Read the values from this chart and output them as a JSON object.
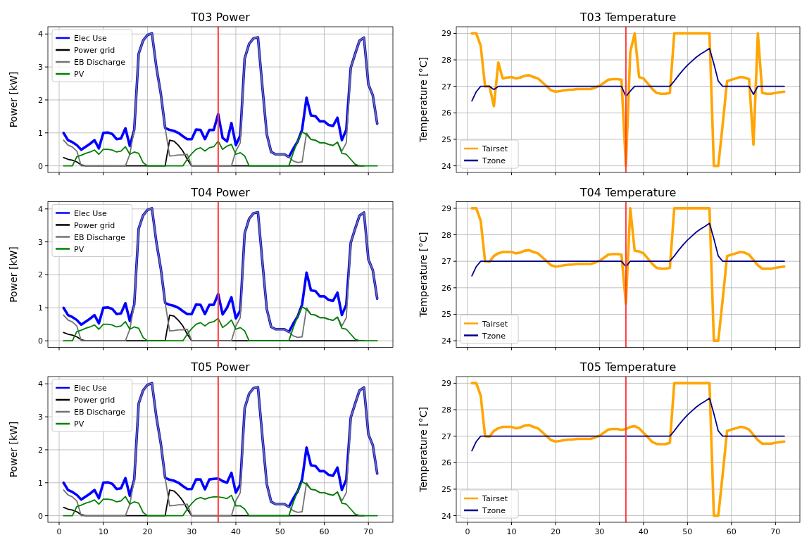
{
  "chart_data": [
    {
      "type": "line",
      "title": "T03 Power",
      "ylabel": "Power [kW]",
      "xlim": [
        -2.55,
        75.55
      ],
      "ylim": [
        -0.2,
        4.22
      ],
      "xticks": [
        0,
        10,
        20,
        30,
        40,
        50,
        60,
        70
      ],
      "yticks": [
        0,
        1,
        2,
        3,
        4
      ],
      "grid": true,
      "legend": "top left",
      "tick_labels": "y",
      "ref_lines": [
        {
          "axis": "x",
          "value": 36,
          "color": "#ff3b3b"
        }
      ],
      "x": [
        1,
        2,
        3,
        4,
        5,
        6,
        7,
        8,
        9,
        10,
        11,
        12,
        13,
        14,
        15,
        16,
        17,
        18,
        19,
        20,
        21,
        22,
        23,
        24,
        25,
        26,
        27,
        28,
        29,
        30,
        31,
        32,
        33,
        34,
        35,
        36,
        37,
        38,
        39,
        40,
        41,
        42,
        43,
        44,
        45,
        46,
        47,
        48,
        49,
        50,
        51,
        52,
        53,
        54,
        55,
        56,
        57,
        58,
        59,
        60,
        61,
        62,
        63,
        64,
        65,
        66,
        67,
        68,
        69,
        70,
        71,
        72
      ],
      "series": [
        {
          "name": "Elec Use",
          "color": "#0000ff",
          "values": [
            1.0,
            0.78,
            0.72,
            0.63,
            0.49,
            0.58,
            0.67,
            0.78,
            0.53,
            1.0,
            1.01,
            0.97,
            0.81,
            0.83,
            1.14,
            0.6,
            1.1,
            3.4,
            3.8,
            3.97,
            4.02,
            3.0,
            2.2,
            1.15,
            1.09,
            1.06,
            1.0,
            0.9,
            0.81,
            0.81,
            1.1,
            1.09,
            0.81,
            1.09,
            1.09,
            1.57,
            0.85,
            0.74,
            1.3,
            0.63,
            0.92,
            3.26,
            3.7,
            3.87,
            3.9,
            2.4,
            0.96,
            0.42,
            0.35,
            0.35,
            0.35,
            0.27,
            0.52,
            0.74,
            1.1,
            2.07,
            1.53,
            1.51,
            1.35,
            1.35,
            1.24,
            1.21,
            1.46,
            0.78,
            1.1,
            2.97,
            3.4,
            3.8,
            3.89,
            2.47,
            2.14,
            1.28
          ]
        },
        {
          "name": "Power grid",
          "color": "#000000",
          "values": [
            0.25,
            0.2,
            0.17,
            0.12,
            0.03,
            0,
            0,
            0,
            0,
            0,
            0,
            0,
            0,
            0,
            0,
            0,
            0,
            0,
            0,
            0,
            0,
            0,
            0,
            0,
            0.78,
            0.75,
            0.62,
            0.45,
            0.2,
            0,
            0,
            0,
            0,
            0,
            0,
            0,
            0,
            0,
            0,
            0,
            0,
            0,
            0,
            0,
            0,
            0,
            0,
            0,
            0,
            0,
            0,
            0,
            0,
            0,
            0,
            0,
            0,
            0,
            0,
            0,
            0,
            0,
            0,
            0,
            0,
            0,
            0,
            0,
            0,
            null,
            null,
            null
          ]
        },
        {
          "name": "EB Discharge",
          "color": "#737373",
          "values": [
            0.78,
            0.63,
            0.57,
            0.45,
            0,
            0,
            0,
            0,
            0,
            0,
            0,
            0,
            0,
            0,
            0,
            0.35,
            1.1,
            3.4,
            3.8,
            3.97,
            4.02,
            3.0,
            2.2,
            1.15,
            0.3,
            0.31,
            0.33,
            0.33,
            0.35,
            0,
            0,
            0,
            0,
            0,
            0,
            0,
            0,
            0,
            0,
            0.45,
            0.7,
            3.26,
            3.7,
            3.87,
            3.9,
            2.4,
            0.96,
            0.42,
            0.35,
            0.35,
            0.35,
            0.27,
            0.15,
            0.1,
            0.12,
            1.0,
            0.8,
            0.78,
            0.7,
            0.7,
            0.65,
            0.62,
            0.72,
            0.45,
            0.7,
            2.97,
            3.4,
            3.8,
            3.89,
            2.47,
            2.14,
            1.28
          ]
        },
        {
          "name": "PV",
          "color": "#008000",
          "values": [
            0,
            0,
            0,
            0.28,
            0.32,
            0.38,
            0.42,
            0.48,
            0.35,
            0.5,
            0.5,
            0.48,
            0.42,
            0.45,
            0.58,
            0.35,
            0.42,
            0.38,
            0.1,
            0,
            0,
            0,
            0,
            0,
            0,
            0,
            0,
            0,
            0.2,
            0.37,
            0.5,
            0.55,
            0.45,
            0.55,
            0.58,
            0.75,
            0.5,
            0.6,
            0.65,
            0.35,
            0.4,
            0.3,
            0,
            0,
            0,
            0,
            0,
            0,
            0,
            0,
            0,
            0,
            0.4,
            0.75,
            1.03,
            0.95,
            0.8,
            0.78,
            0.7,
            0.7,
            0.65,
            0.62,
            0.72,
            0.38,
            0.35,
            0.2,
            0.05,
            0,
            0,
            0,
            0,
            0
          ]
        }
      ]
    },
    {
      "type": "line",
      "title": "T03 Temperature",
      "ylabel": "Temperature [°C]",
      "xlim": [
        -2.55,
        75.55
      ],
      "ylim": [
        23.75,
        29.25
      ],
      "xticks": [
        0,
        10,
        20,
        30,
        40,
        50,
        60,
        70
      ],
      "yticks": [
        24,
        25,
        26,
        27,
        28,
        29
      ],
      "grid": true,
      "legend": "bottom left",
      "tick_labels": "y",
      "ref_lines": [
        {
          "axis": "x",
          "value": 36,
          "color": "#ff3b3b"
        }
      ],
      "x": [
        1,
        2,
        3,
        4,
        5,
        6,
        7,
        8,
        9,
        10,
        11,
        12,
        13,
        14,
        15,
        16,
        17,
        18,
        19,
        20,
        21,
        22,
        23,
        24,
        25,
        26,
        27,
        28,
        29,
        30,
        31,
        32,
        33,
        34,
        35,
        36,
        37,
        38,
        39,
        40,
        41,
        42,
        43,
        44,
        45,
        46,
        47,
        48,
        49,
        50,
        51,
        52,
        53,
        54,
        55,
        56,
        57,
        58,
        59,
        60,
        61,
        62,
        63,
        64,
        65,
        66,
        67,
        68,
        69,
        70,
        71,
        72
      ],
      "series": [
        {
          "name": "Tairset",
          "color": "#ffa500",
          "values": [
            29,
            29,
            28.53,
            27.0,
            27.0,
            26.25,
            27.9,
            27.3,
            27.33,
            27.35,
            27.3,
            27.33,
            27.4,
            27.42,
            27.35,
            27.3,
            27.15,
            27.0,
            26.85,
            26.8,
            26.82,
            26.85,
            26.87,
            26.88,
            26.9,
            26.9,
            26.9,
            26.9,
            26.95,
            27.02,
            27.13,
            27.25,
            27.27,
            27.27,
            27.25,
            24.0,
            28.3,
            29.0,
            27.35,
            27.3,
            27.1,
            26.9,
            26.75,
            26.72,
            26.72,
            26.75,
            29.0,
            29.0,
            29.0,
            29.0,
            29.0,
            29.0,
            29.0,
            29.0,
            29.0,
            24.0,
            24.0,
            25.55,
            27.2,
            27.25,
            27.3,
            27.35,
            27.33,
            27.27,
            24.8,
            29.0,
            26.75,
            26.72,
            26.72,
            26.75,
            26.78,
            26.8
          ]
        },
        {
          "name": "Tzone",
          "color": "#00008b",
          "values": [
            26.45,
            26.8,
            27.0,
            27.0,
            27.0,
            26.88,
            27,
            27,
            27,
            27,
            27,
            27,
            27,
            27,
            27,
            27,
            27,
            27,
            27,
            27,
            27,
            27,
            27,
            27,
            27,
            27,
            27,
            27,
            27,
            27,
            27,
            27,
            27,
            27,
            27,
            26.62,
            26.82,
            27,
            27,
            27,
            27,
            27,
            27,
            27,
            27,
            27,
            27.2,
            27.42,
            27.62,
            27.8,
            27.95,
            28.1,
            28.22,
            28.32,
            28.43,
            27.85,
            27.2,
            27,
            27,
            27,
            27,
            27,
            27,
            27,
            26.7,
            27,
            27,
            27,
            27,
            27,
            27,
            27
          ]
        }
      ]
    },
    {
      "type": "line",
      "title": "T04 Power",
      "ylabel": "Power [kW]",
      "xlim": [
        -2.55,
        75.55
      ],
      "ylim": [
        -0.2,
        4.22
      ],
      "xticks": [
        0,
        10,
        20,
        30,
        40,
        50,
        60,
        70
      ],
      "yticks": [
        0,
        1,
        2,
        3,
        4
      ],
      "grid": true,
      "legend": "top left",
      "tick_labels": "y",
      "ref_lines": [
        {
          "axis": "x",
          "value": 36,
          "color": "#ff3b3b"
        }
      ],
      "x": [
        1,
        2,
        3,
        4,
        5,
        6,
        7,
        8,
        9,
        10,
        11,
        12,
        13,
        14,
        15,
        16,
        17,
        18,
        19,
        20,
        21,
        22,
        23,
        24,
        25,
        26,
        27,
        28,
        29,
        30,
        31,
        32,
        33,
        34,
        35,
        36,
        37,
        38,
        39,
        40,
        41,
        42,
        43,
        44,
        45,
        46,
        47,
        48,
        49,
        50,
        51,
        52,
        53,
        54,
        55,
        56,
        57,
        58,
        59,
        60,
        61,
        62,
        63,
        64,
        65,
        66,
        67,
        68,
        69,
        70,
        71,
        72
      ],
      "series": [
        {
          "name": "Elec Use",
          "color": "#0000ff",
          "values": [
            1.0,
            0.78,
            0.72,
            0.63,
            0.49,
            0.58,
            0.67,
            0.78,
            0.53,
            1.0,
            1.01,
            0.97,
            0.81,
            0.83,
            1.14,
            0.6,
            1.1,
            3.4,
            3.8,
            3.97,
            4.02,
            3.0,
            2.2,
            1.15,
            1.09,
            1.06,
            1.0,
            0.9,
            0.81,
            0.81,
            1.1,
            1.09,
            0.81,
            1.09,
            1.09,
            1.42,
            0.8,
            1.0,
            1.32,
            0.68,
            0.92,
            3.26,
            3.7,
            3.87,
            3.9,
            2.4,
            0.96,
            0.42,
            0.35,
            0.35,
            0.35,
            0.27,
            0.52,
            0.74,
            1.1,
            2.07,
            1.53,
            1.51,
            1.35,
            1.35,
            1.24,
            1.21,
            1.46,
            0.78,
            1.1,
            2.97,
            3.4,
            3.8,
            3.89,
            2.47,
            2.14,
            1.28
          ]
        },
        {
          "name": "Power grid",
          "color": "#000000",
          "values": [
            0.25,
            0.2,
            0.17,
            0.12,
            0.03,
            0,
            0,
            0,
            0,
            0,
            0,
            0,
            0,
            0,
            0,
            0,
            0,
            0,
            0,
            0,
            0,
            0,
            0,
            0,
            0.78,
            0.75,
            0.62,
            0.45,
            0.2,
            0,
            0,
            0,
            0,
            0,
            0,
            0,
            0,
            0,
            0,
            0,
            0,
            0,
            0,
            0,
            0,
            0,
            0,
            0,
            0,
            0,
            0,
            0,
            0,
            0,
            0,
            0,
            0,
            0,
            0,
            0,
            0,
            0,
            0,
            0,
            0,
            0,
            0,
            0,
            0,
            null,
            null,
            null
          ]
        },
        {
          "name": "EB Discharge",
          "color": "#737373",
          "values": [
            0.78,
            0.63,
            0.57,
            0.45,
            0,
            0,
            0,
            0,
            0,
            0,
            0,
            0,
            0,
            0,
            0,
            0.35,
            1.1,
            3.4,
            3.8,
            3.97,
            4.02,
            3.0,
            2.2,
            1.15,
            0.3,
            0.31,
            0.33,
            0.33,
            0.35,
            0,
            0,
            0,
            0,
            0,
            0,
            0,
            0,
            0,
            0,
            0.45,
            0.7,
            3.26,
            3.7,
            3.87,
            3.9,
            2.4,
            0.96,
            0.42,
            0.35,
            0.35,
            0.35,
            0.27,
            0.15,
            0.1,
            0.12,
            1.0,
            0.8,
            0.78,
            0.7,
            0.7,
            0.65,
            0.62,
            0.72,
            0.45,
            0.7,
            2.97,
            3.4,
            3.8,
            3.89,
            2.47,
            2.14,
            1.28
          ]
        },
        {
          "name": "PV",
          "color": "#008000",
          "values": [
            0,
            0,
            0,
            0.28,
            0.32,
            0.38,
            0.42,
            0.48,
            0.35,
            0.5,
            0.5,
            0.48,
            0.42,
            0.45,
            0.58,
            0.35,
            0.42,
            0.38,
            0.1,
            0,
            0,
            0,
            0,
            0,
            0,
            0,
            0,
            0,
            0.2,
            0.37,
            0.5,
            0.55,
            0.45,
            0.55,
            0.58,
            0.68,
            0.4,
            0.5,
            0.63,
            0.35,
            0.4,
            0.3,
            0,
            0,
            0,
            0,
            0,
            0,
            0,
            0,
            0,
            0,
            0.4,
            0.75,
            1.03,
            0.95,
            0.8,
            0.78,
            0.7,
            0.7,
            0.65,
            0.62,
            0.72,
            0.38,
            0.35,
            0.2,
            0.05,
            0,
            0,
            0,
            0,
            0
          ]
        }
      ]
    },
    {
      "type": "line",
      "title": "T04 Temperature",
      "ylabel": "Temperature [°C]",
      "xlim": [
        -2.55,
        75.55
      ],
      "ylim": [
        23.75,
        29.25
      ],
      "xticks": [
        0,
        10,
        20,
        30,
        40,
        50,
        60,
        70
      ],
      "yticks": [
        24,
        25,
        26,
        27,
        28,
        29
      ],
      "grid": true,
      "legend": "bottom left",
      "tick_labels": "y",
      "ref_lines": [
        {
          "axis": "x",
          "value": 36,
          "color": "#ff3b3b"
        }
      ],
      "x": [
        1,
        2,
        3,
        4,
        5,
        6,
        7,
        8,
        9,
        10,
        11,
        12,
        13,
        14,
        15,
        16,
        17,
        18,
        19,
        20,
        21,
        22,
        23,
        24,
        25,
        26,
        27,
        28,
        29,
        30,
        31,
        32,
        33,
        34,
        35,
        36,
        37,
        38,
        39,
        40,
        41,
        42,
        43,
        44,
        45,
        46,
        47,
        48,
        49,
        50,
        51,
        52,
        53,
        54,
        55,
        56,
        57,
        58,
        59,
        60,
        61,
        62,
        63,
        64,
        65,
        66,
        67,
        68,
        69,
        70,
        71,
        72
      ],
      "series": [
        {
          "name": "Tairset",
          "color": "#ffa500",
          "values": [
            29,
            29,
            28.53,
            27.0,
            26.98,
            27.2,
            27.3,
            27.35,
            27.35,
            27.35,
            27.3,
            27.33,
            27.4,
            27.42,
            27.35,
            27.3,
            27.15,
            27.0,
            26.85,
            26.8,
            26.82,
            26.85,
            26.87,
            26.88,
            26.9,
            26.9,
            26.9,
            26.9,
            26.95,
            27.02,
            27.13,
            27.25,
            27.27,
            27.27,
            27.25,
            25.4,
            29.0,
            27.4,
            27.37,
            27.3,
            27.1,
            26.9,
            26.75,
            26.72,
            26.72,
            26.75,
            29.0,
            29.0,
            29.0,
            29.0,
            29.0,
            29.0,
            29.0,
            29.0,
            29.0,
            24.0,
            24.0,
            25.55,
            27.2,
            27.25,
            27.3,
            27.35,
            27.33,
            27.25,
            27.05,
            26.85,
            26.72,
            26.72,
            26.72,
            26.75,
            26.78,
            26.8
          ]
        },
        {
          "name": "Tzone",
          "color": "#00008b",
          "values": [
            26.45,
            26.8,
            27.0,
            27.0,
            27.0,
            27.0,
            27,
            27,
            27,
            27,
            27,
            27,
            27,
            27,
            27,
            27,
            27,
            27,
            27,
            27,
            27,
            27,
            27,
            27,
            27,
            27,
            27,
            27,
            27,
            27,
            27,
            27,
            27,
            27,
            27,
            26.8,
            27,
            27,
            27,
            27,
            27,
            27,
            27,
            27,
            27,
            27,
            27.2,
            27.42,
            27.62,
            27.8,
            27.95,
            28.1,
            28.22,
            28.32,
            28.43,
            27.85,
            27.2,
            27,
            27,
            27,
            27,
            27,
            27,
            27,
            27,
            27,
            27,
            27,
            27,
            27,
            27,
            27
          ]
        }
      ]
    },
    {
      "type": "line",
      "title": "T05 Power",
      "ylabel": "Power [kW]",
      "xlim": [
        -2.55,
        75.55
      ],
      "ylim": [
        -0.2,
        4.22
      ],
      "xticks": [
        0,
        10,
        20,
        30,
        40,
        50,
        60,
        70
      ],
      "yticks": [
        0,
        1,
        2,
        3,
        4
      ],
      "grid": true,
      "legend": "top left",
      "ref_lines": [
        {
          "axis": "x",
          "value": 36,
          "color": "#ff3b3b"
        }
      ],
      "x": [
        1,
        2,
        3,
        4,
        5,
        6,
        7,
        8,
        9,
        10,
        11,
        12,
        13,
        14,
        15,
        16,
        17,
        18,
        19,
        20,
        21,
        22,
        23,
        24,
        25,
        26,
        27,
        28,
        29,
        30,
        31,
        32,
        33,
        34,
        35,
        36,
        37,
        38,
        39,
        40,
        41,
        42,
        43,
        44,
        45,
        46,
        47,
        48,
        49,
        50,
        51,
        52,
        53,
        54,
        55,
        56,
        57,
        58,
        59,
        60,
        61,
        62,
        63,
        64,
        65,
        66,
        67,
        68,
        69,
        70,
        71,
        72
      ],
      "series": [
        {
          "name": "Elec Use",
          "color": "#0000ff",
          "values": [
            1.0,
            0.78,
            0.72,
            0.63,
            0.49,
            0.58,
            0.67,
            0.78,
            0.53,
            1.0,
            1.01,
            0.97,
            0.81,
            0.83,
            1.14,
            0.6,
            1.1,
            3.4,
            3.8,
            3.97,
            4.02,
            3.0,
            2.2,
            1.15,
            1.09,
            1.06,
            1.0,
            0.9,
            0.81,
            0.81,
            1.1,
            1.1,
            0.8,
            1.1,
            1.12,
            1.13,
            1.05,
            1.0,
            1.3,
            0.7,
            0.95,
            3.26,
            3.7,
            3.87,
            3.9,
            2.4,
            0.96,
            0.42,
            0.35,
            0.35,
            0.35,
            0.27,
            0.52,
            0.74,
            1.1,
            2.07,
            1.53,
            1.51,
            1.35,
            1.35,
            1.24,
            1.21,
            1.46,
            0.78,
            1.1,
            2.97,
            3.4,
            3.8,
            3.89,
            2.47,
            2.14,
            1.28
          ]
        },
        {
          "name": "Power grid",
          "color": "#000000",
          "values": [
            0.25,
            0.2,
            0.17,
            0.12,
            0.03,
            0,
            0,
            0,
            0,
            0,
            0,
            0,
            0,
            0,
            0,
            0,
            0,
            0,
            0,
            0,
            0,
            0,
            0,
            0,
            0.78,
            0.75,
            0.62,
            0.45,
            0.2,
            0,
            0,
            0,
            0,
            0,
            0,
            0,
            0,
            0,
            0,
            0,
            0,
            0,
            0,
            0,
            0,
            0,
            0,
            0,
            0,
            0,
            0,
            0,
            0,
            0,
            0,
            0,
            0,
            0,
            0,
            0,
            0,
            0,
            0,
            0,
            0,
            0,
            0,
            0,
            0,
            null,
            null,
            null
          ]
        },
        {
          "name": "EB Discharge",
          "color": "#737373",
          "values": [
            0.78,
            0.63,
            0.57,
            0.45,
            0,
            0,
            0,
            0,
            0,
            0,
            0,
            0,
            0,
            0,
            0,
            0.35,
            1.1,
            3.4,
            3.8,
            3.97,
            4.02,
            3.0,
            2.2,
            1.15,
            0.3,
            0.31,
            0.33,
            0.33,
            0.35,
            0,
            0,
            0,
            0,
            0,
            0,
            0,
            0,
            0,
            0,
            0.45,
            0.7,
            3.26,
            3.7,
            3.87,
            3.9,
            2.4,
            0.96,
            0.42,
            0.35,
            0.35,
            0.35,
            0.27,
            0.15,
            0.1,
            0.12,
            1.0,
            0.8,
            0.78,
            0.7,
            0.7,
            0.65,
            0.62,
            0.72,
            0.45,
            0.7,
            2.97,
            3.4,
            3.8,
            3.89,
            2.47,
            2.14,
            1.28
          ]
        },
        {
          "name": "PV",
          "color": "#008000",
          "values": [
            0,
            0,
            0,
            0.28,
            0.32,
            0.38,
            0.42,
            0.48,
            0.35,
            0.5,
            0.5,
            0.48,
            0.42,
            0.45,
            0.58,
            0.35,
            0.42,
            0.38,
            0.1,
            0,
            0,
            0,
            0,
            0,
            0,
            0,
            0,
            0,
            0.2,
            0.37,
            0.5,
            0.55,
            0.5,
            0.55,
            0.57,
            0.57,
            0.55,
            0.52,
            0.62,
            0.3,
            0.3,
            0.2,
            0,
            0,
            0,
            0,
            0,
            0,
            0,
            0,
            0,
            0,
            0.4,
            0.75,
            1.03,
            0.95,
            0.8,
            0.78,
            0.7,
            0.7,
            0.65,
            0.62,
            0.72,
            0.38,
            0.35,
            0.2,
            0.05,
            0,
            0,
            0,
            0,
            0
          ]
        }
      ]
    },
    {
      "type": "line",
      "title": "T05 Temperature",
      "ylabel": "Temperature [°C]",
      "xlim": [
        -2.55,
        75.55
      ],
      "ylim": [
        23.75,
        29.25
      ],
      "xticks": [
        0,
        10,
        20,
        30,
        40,
        50,
        60,
        70
      ],
      "yticks": [
        24,
        25,
        26,
        27,
        28,
        29
      ],
      "grid": true,
      "legend": "bottom left",
      "ref_lines": [
        {
          "axis": "x",
          "value": 36,
          "color": "#ff3b3b"
        }
      ],
      "x": [
        1,
        2,
        3,
        4,
        5,
        6,
        7,
        8,
        9,
        10,
        11,
        12,
        13,
        14,
        15,
        16,
        17,
        18,
        19,
        20,
        21,
        22,
        23,
        24,
        25,
        26,
        27,
        28,
        29,
        30,
        31,
        32,
        33,
        34,
        35,
        36,
        37,
        38,
        39,
        40,
        41,
        42,
        43,
        44,
        45,
        46,
        47,
        48,
        49,
        50,
        51,
        52,
        53,
        54,
        55,
        56,
        57,
        58,
        59,
        60,
        61,
        62,
        63,
        64,
        65,
        66,
        67,
        68,
        69,
        70,
        71,
        72
      ],
      "series": [
        {
          "name": "Tairset",
          "color": "#ffa500",
          "values": [
            29,
            29,
            28.53,
            27.0,
            26.98,
            27.2,
            27.3,
            27.35,
            27.35,
            27.35,
            27.3,
            27.33,
            27.4,
            27.42,
            27.35,
            27.3,
            27.15,
            27.0,
            26.85,
            26.8,
            26.82,
            26.85,
            26.87,
            26.88,
            26.9,
            26.9,
            26.9,
            26.9,
            26.95,
            27.02,
            27.13,
            27.25,
            27.27,
            27.27,
            27.24,
            27.27,
            27.35,
            27.38,
            27.3,
            27.13,
            26.96,
            26.78,
            26.71,
            26.7,
            26.7,
            26.75,
            29.0,
            29.0,
            29.0,
            29.0,
            29.0,
            29.0,
            29.0,
            29.0,
            29.0,
            24.0,
            24.0,
            25.55,
            27.2,
            27.25,
            27.3,
            27.35,
            27.33,
            27.25,
            27.05,
            26.85,
            26.72,
            26.72,
            26.72,
            26.75,
            26.78,
            26.8
          ]
        },
        {
          "name": "Tzone",
          "color": "#00008b",
          "values": [
            26.45,
            26.8,
            27.0,
            27.0,
            27.0,
            27.0,
            27,
            27,
            27,
            27,
            27,
            27,
            27,
            27,
            27,
            27,
            27,
            27,
            27,
            27,
            27,
            27,
            27,
            27,
            27,
            27,
            27,
            27,
            27,
            27,
            27,
            27,
            27,
            27,
            27,
            27,
            27,
            27,
            27,
            27,
            27,
            27,
            27,
            27,
            27,
            27,
            27.2,
            27.42,
            27.62,
            27.8,
            27.95,
            28.1,
            28.22,
            28.32,
            28.43,
            27.85,
            27.2,
            27,
            27,
            27,
            27,
            27,
            27,
            27,
            27,
            27,
            27,
            27,
            27,
            27,
            27,
            27
          ]
        }
      ]
    }
  ]
}
